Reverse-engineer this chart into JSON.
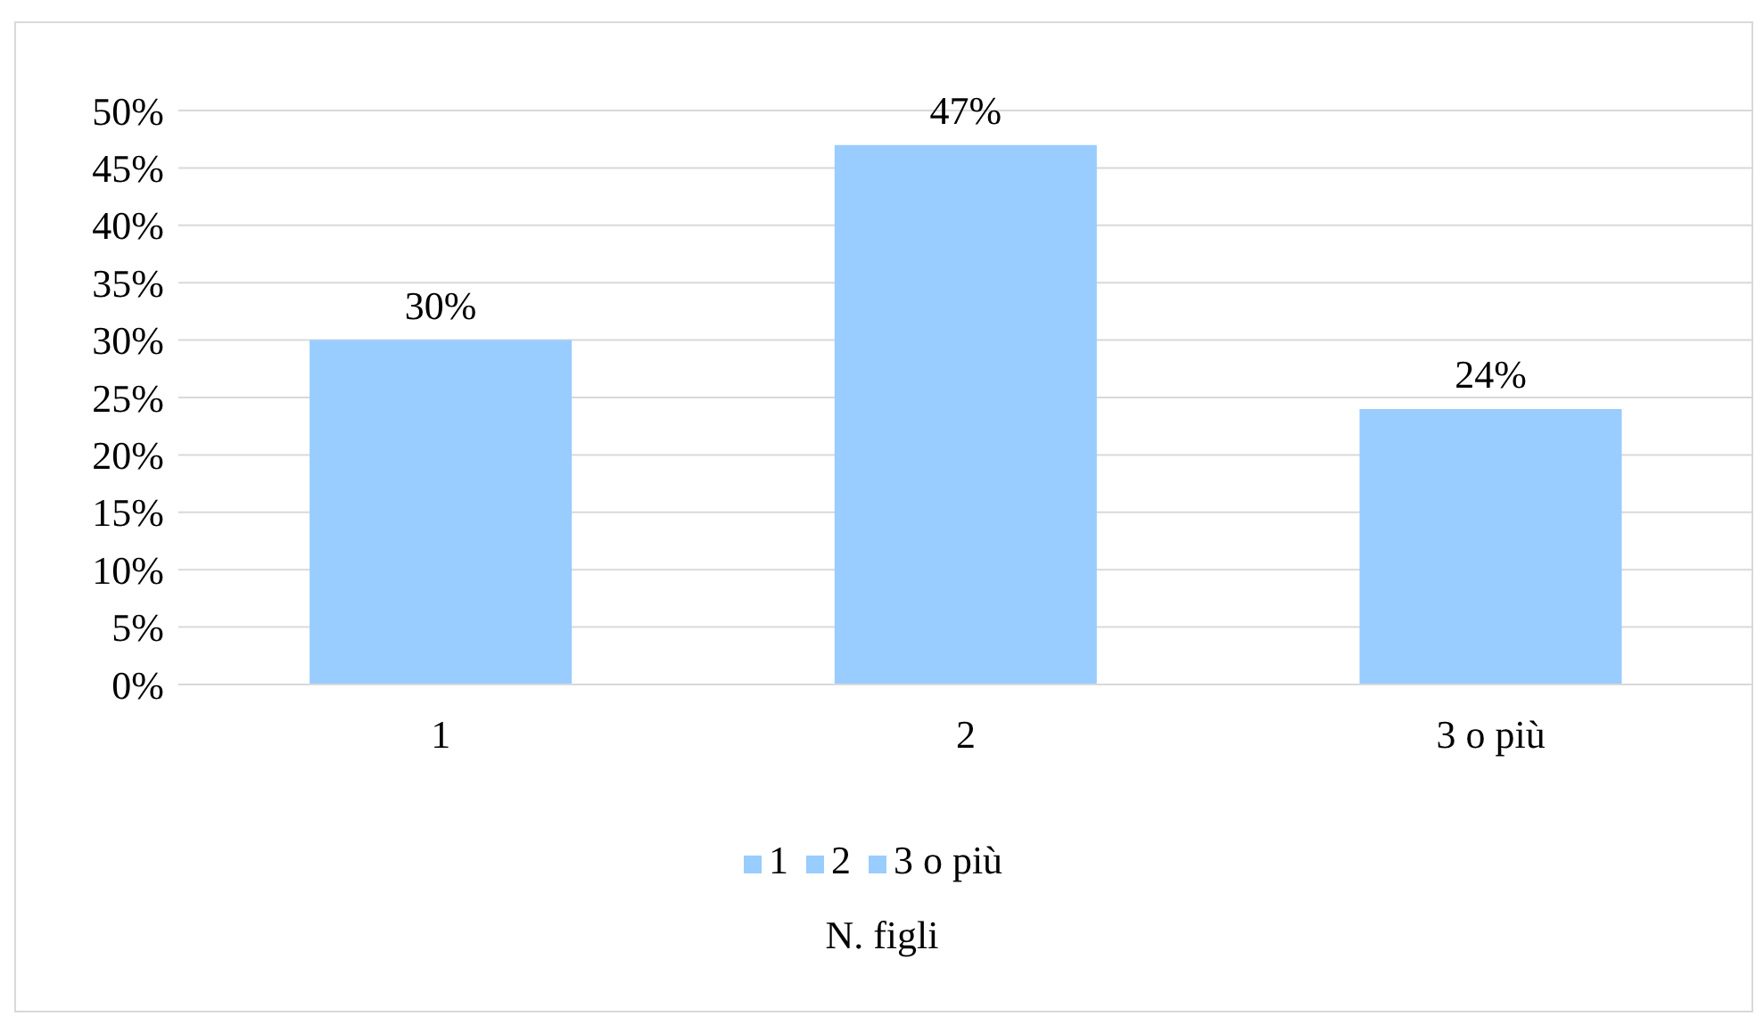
{
  "chart_data": {
    "type": "bar",
    "xlabel": "N. figli",
    "categories": [
      "1",
      "2",
      "3 o più"
    ],
    "series": [
      {
        "name": "1",
        "color": "#99ccff",
        "values": [
          30,
          null,
          null
        ],
        "value_labels": [
          "30%",
          null,
          null
        ]
      },
      {
        "name": "2",
        "color": "#99ccff",
        "values": [
          null,
          47,
          null
        ],
        "value_labels": [
          null,
          "47%",
          null
        ]
      },
      {
        "name": "3 o più",
        "color": "#99ccff",
        "values": [
          null,
          null,
          24
        ],
        "value_labels": [
          null,
          null,
          "24%"
        ]
      }
    ],
    "stacked": true,
    "ylim": [
      0,
      50
    ],
    "yticks": [
      {
        "value": 0,
        "label": "0%"
      },
      {
        "value": 5,
        "label": "5%"
      },
      {
        "value": 10,
        "label": "10%"
      },
      {
        "value": 15,
        "label": "15%"
      },
      {
        "value": 20,
        "label": "20%"
      },
      {
        "value": 25,
        "label": "25%"
      },
      {
        "value": 30,
        "label": "30%"
      },
      {
        "value": 35,
        "label": "35%"
      },
      {
        "value": 40,
        "label": "40%"
      },
      {
        "value": 45,
        "label": "45%"
      },
      {
        "value": 50,
        "label": "50%"
      }
    ],
    "grid": "y",
    "legend": "bottom"
  }
}
